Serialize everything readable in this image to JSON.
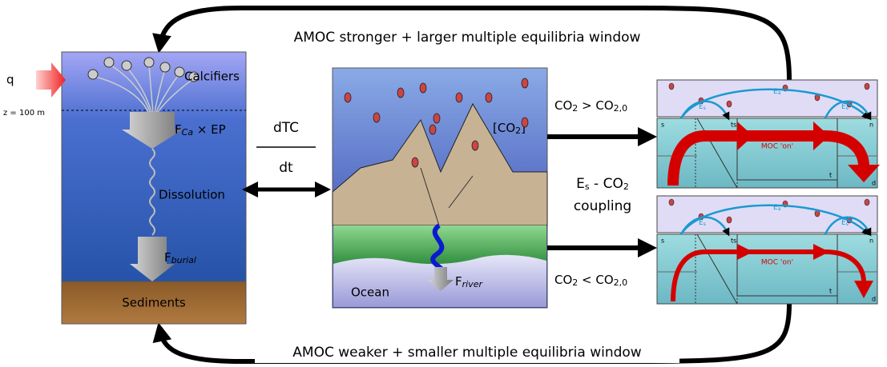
{
  "feedback": {
    "top": "AMOC stronger + larger multiple equilibria window",
    "bottom": "AMOC weaker + smaller multiple equilibria window"
  },
  "ocean_column": {
    "forcing": "q",
    "depth": "z = 100 m",
    "calcifiers": "Calcifiers",
    "export": {
      "base": "F",
      "sub": "Ca",
      "rest": " × EP"
    },
    "dissolution": "Dissolution",
    "burial": {
      "base": "F",
      "sub": "burial"
    },
    "sediments": "Sediments"
  },
  "exchange": {
    "numerator": "dTC",
    "denominator": "dt"
  },
  "land": {
    "co2": {
      "open": "[CO",
      "sub": "2",
      "close": "]"
    },
    "ocean": "Ocean",
    "river": {
      "base": "F",
      "sub": "river"
    }
  },
  "conditions": {
    "high": {
      "a": "CO",
      "a_sub": "2",
      "op": " > CO",
      "b_sub": "2,0"
    },
    "low": {
      "a": "CO",
      "a_sub": "2",
      "op": " < CO",
      "b_sub": "2,0"
    }
  },
  "coupling": {
    "base": "E",
    "sub": "s",
    "rest": " - CO",
    "rest_sub": "2",
    "line2": "coupling"
  },
  "box_models": [
    {
      "s": "s",
      "ts": "ts",
      "n": "n",
      "t": "t",
      "d": "d",
      "moc": "MOC 'on'",
      "ea": {
        "base": "E",
        "sub": "a"
      },
      "es_left": {
        "base": "E",
        "sub": "s"
      },
      "es_right": {
        "base": "E",
        "sub": "s"
      }
    },
    {
      "s": "s",
      "ts": "ts",
      "n": "n",
      "t": "t",
      "d": "d",
      "moc": "MOC 'on'",
      "ea": {
        "base": "E",
        "sub": "a"
      },
      "es_left": {
        "base": "E",
        "sub": "s"
      },
      "es_right": {
        "base": "E",
        "sub": "s"
      }
    }
  ]
}
